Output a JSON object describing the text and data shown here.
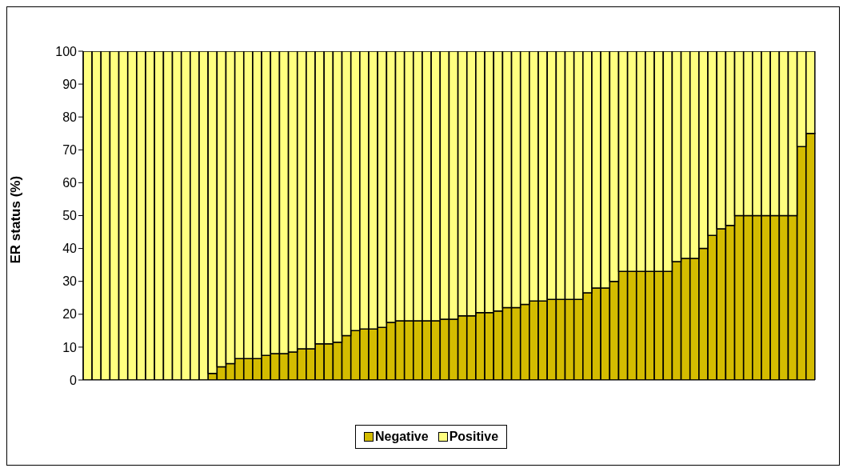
{
  "chart_data": {
    "type": "bar",
    "stacked": true,
    "ylabel": "ER status (%)",
    "ylim": [
      0,
      100
    ],
    "yticks": [
      0,
      10,
      20,
      30,
      40,
      50,
      60,
      70,
      80,
      90,
      100
    ],
    "grid": false,
    "legend": "bottom",
    "tick_labels": "y",
    "categories": [
      null,
      null,
      null,
      null,
      null,
      null,
      null,
      null,
      null,
      null,
      null,
      null,
      null,
      null,
      null,
      null,
      null,
      null,
      null,
      null,
      null,
      null,
      null,
      null,
      null,
      null,
      null,
      null,
      null,
      null,
      null,
      null,
      null,
      null,
      null,
      null,
      null,
      null,
      null,
      null,
      null,
      null,
      null,
      null,
      null,
      null,
      null,
      null,
      null,
      null,
      null,
      null,
      null,
      null,
      null,
      null,
      null,
      null,
      null,
      null,
      null,
      null,
      null,
      null,
      null,
      null,
      null,
      null,
      null,
      null,
      null,
      null,
      null,
      null,
      null,
      null,
      null,
      null,
      null,
      null,
      null,
      null
    ],
    "series": [
      {
        "name": "Negative",
        "color": "#d4bc00",
        "values": [
          0,
          0,
          0,
          0,
          0,
          0,
          0,
          0,
          0,
          0,
          0,
          0,
          0,
          0,
          2,
          4,
          5,
          6.5,
          6.5,
          6.5,
          7.5,
          8,
          8,
          8.5,
          9.5,
          9.5,
          11,
          11,
          11.5,
          13.5,
          15,
          15.5,
          15.5,
          16,
          17.5,
          18,
          18,
          18,
          18,
          18,
          18.5,
          18.5,
          19.5,
          19.5,
          20.5,
          20.5,
          21,
          22,
          22,
          23,
          24,
          24,
          24.5,
          24.5,
          24.5,
          24.5,
          26.5,
          28,
          28,
          30,
          33,
          33,
          33,
          33,
          33,
          33,
          36,
          37,
          37,
          40,
          44,
          46,
          47,
          50,
          50,
          50,
          50,
          50,
          50,
          50,
          71,
          75
        ]
      },
      {
        "name": "Positive",
        "color": "#ffff80",
        "values": [
          100,
          100,
          100,
          100,
          100,
          100,
          100,
          100,
          100,
          100,
          100,
          100,
          100,
          100,
          98,
          96,
          95,
          93.5,
          93.5,
          93.5,
          92.5,
          92,
          92,
          91.5,
          90.5,
          90.5,
          89,
          89,
          88.5,
          86.5,
          85,
          84.5,
          84.5,
          84,
          82.5,
          82,
          82,
          82,
          82,
          82,
          81.5,
          81.5,
          80.5,
          80.5,
          79.5,
          79.5,
          79,
          78,
          78,
          77,
          76,
          76,
          75.5,
          75.5,
          75.5,
          75.5,
          73.5,
          72,
          72,
          70,
          67,
          67,
          67,
          67,
          67,
          67,
          64,
          63,
          63,
          60,
          56,
          54,
          53,
          50,
          50,
          50,
          50,
          50,
          50,
          50,
          29,
          25
        ]
      }
    ]
  }
}
